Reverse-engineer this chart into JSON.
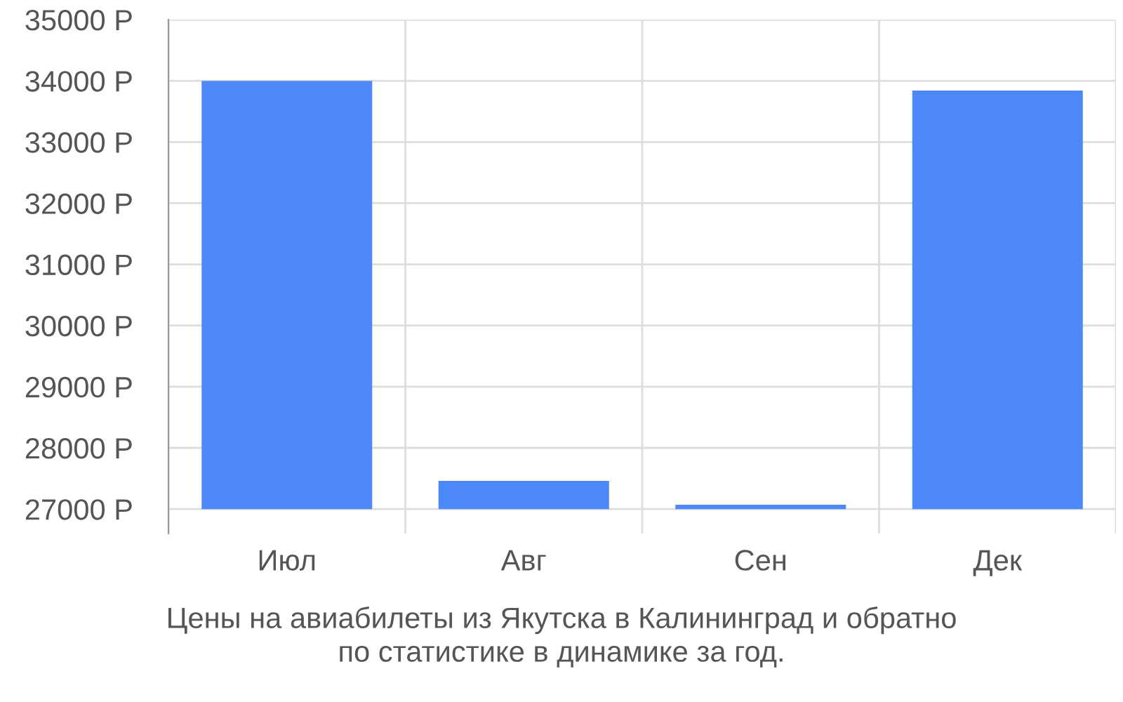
{
  "chart_data": {
    "type": "bar",
    "categories": [
      "Июл",
      "Авг",
      "Сен",
      "Дек"
    ],
    "base": [
      27000,
      27000,
      27000,
      27000
    ],
    "values": [
      7000,
      460,
      70,
      6840
    ],
    "color": "#4d88f9",
    "ylim": [
      26600,
      35000
    ],
    "yticks": [
      {
        "value": 27000,
        "label": "27000 Р"
      },
      {
        "value": 28000,
        "label": "28000 Р"
      },
      {
        "value": 29000,
        "label": "29000 Р"
      },
      {
        "value": 30000,
        "label": "30000 Р"
      },
      {
        "value": 31000,
        "label": "31000 Р"
      },
      {
        "value": 32000,
        "label": "32000 Р"
      },
      {
        "value": 33000,
        "label": "33000 Р"
      },
      {
        "value": 34000,
        "label": "34000 Р"
      },
      {
        "value": 35000,
        "label": "35000 Р"
      }
    ],
    "grid": true,
    "annotations": [
      "Цены на авиабилеты из Якутска в Калининград и обратно\nпо статистике в динамике за год."
    ]
  }
}
